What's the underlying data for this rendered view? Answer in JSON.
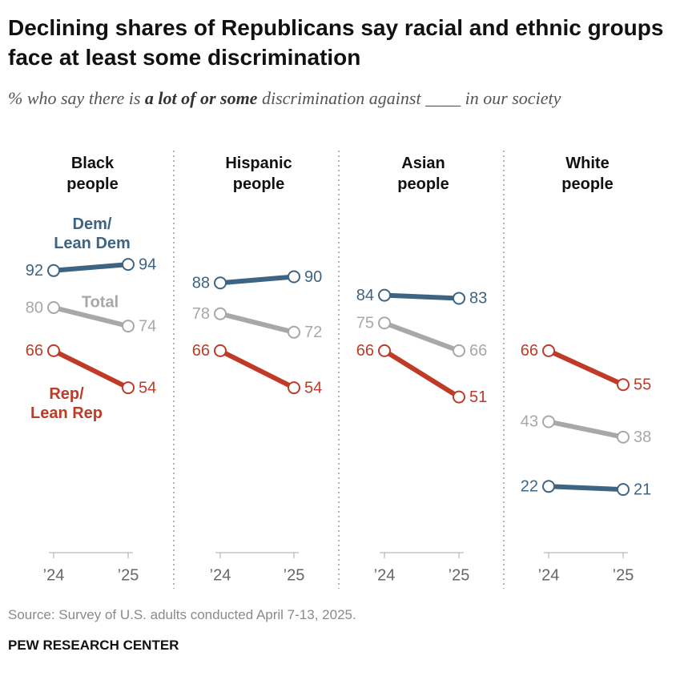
{
  "title": "Declining shares of Republicans say racial and ethnic groups face at least some discrimination",
  "subtitle": [
    "% who say there is ",
    "a lot of or some",
    " discrimination against ____ in our society"
  ],
  "source": "Source: Survey of U.S. adults conducted April 7-13, 2025.",
  "footer": "PEW RESEARCH CENTER",
  "chart_data": [
    {
      "type": "line",
      "title": "Black people",
      "x": [
        "’24",
        "’25"
      ],
      "ylim": [
        0,
        100
      ],
      "series": [
        {
          "name": "Total",
          "color": "#a8a8a8",
          "values": [
            80,
            74
          ]
        },
        {
          "name": "Dem/Lean Dem",
          "color": "#3e6483",
          "values": [
            92,
            94
          ]
        },
        {
          "name": "Rep/Lean Rep",
          "color": "#bf3a27",
          "values": [
            66,
            54
          ]
        }
      ]
    },
    {
      "type": "line",
      "title": "Hispanic people",
      "x": [
        "’24",
        "’25"
      ],
      "ylim": [
        0,
        100
      ],
      "series": [
        {
          "color": "#a8a8a8",
          "values": [
            78,
            72
          ]
        },
        {
          "color": "#3e6483",
          "values": [
            88,
            90
          ]
        },
        {
          "color": "#bf3a27",
          "values": [
            66,
            54
          ]
        }
      ]
    },
    {
      "type": "line",
      "title": "Asian people",
      "x": [
        "’24",
        "’25"
      ],
      "ylim": [
        0,
        100
      ],
      "series": [
        {
          "color": "#a8a8a8",
          "values": [
            75,
            66
          ]
        },
        {
          "color": "#3e6483",
          "values": [
            84,
            83
          ]
        },
        {
          "color": "#bf3a27",
          "values": [
            66,
            51
          ]
        }
      ]
    },
    {
      "type": "line",
      "title": "White people",
      "x": [
        "’24",
        "’25"
      ],
      "ylim": [
        0,
        100
      ],
      "series": [
        {
          "color": "#a8a8a8",
          "values": [
            43,
            38
          ]
        },
        {
          "color": "#3e6483",
          "values": [
            22,
            21
          ]
        },
        {
          "color": "#bf3a27",
          "values": [
            66,
            55
          ]
        }
      ]
    }
  ]
}
